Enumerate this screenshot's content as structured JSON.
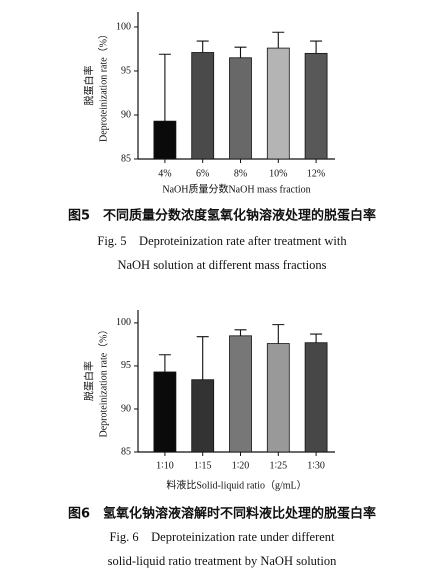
{
  "chart_data": [
    {
      "type": "bar",
      "ylabel": [
        "脱蛋白率",
        "Deproteinization rate（%）"
      ],
      "xlabel": "NaOH质量分数NaOH mass fraction",
      "categories": [
        "4%",
        "6%",
        "8%",
        "10%",
        "12%"
      ],
      "values": [
        89.3,
        97.1,
        96.5,
        97.6,
        97.0
      ],
      "errors": [
        7.6,
        1.3,
        1.2,
        1.8,
        1.4
      ],
      "colors": [
        "#0a0a0a",
        "#4a4a4a",
        "#686868",
        "#b4b4b4",
        "#585858"
      ],
      "ylim": [
        85,
        101.7
      ],
      "yticks": [
        85,
        90,
        95,
        100
      ],
      "caption": [
        "图5　不同质量分数浓度氢氧化钠溶液处理的脱蛋白率",
        "Fig. 5　Deproteinization rate after treatment with",
        "NaOH solution at different mass fractions"
      ]
    },
    {
      "type": "bar",
      "ylabel": [
        "脱蛋白率",
        "Deproteinization rate（%）"
      ],
      "xlabel": "料液比Solid-liquid ratio（g/mL）",
      "categories": [
        "1∶10",
        "1∶15",
        "1∶20",
        "1∶25",
        "1∶30"
      ],
      "values": [
        94.3,
        93.4,
        98.5,
        97.6,
        97.7
      ],
      "errors": [
        2.0,
        5.0,
        0.7,
        2.2,
        1.0
      ],
      "colors": [
        "#0a0a0a",
        "#333333",
        "#777777",
        "#999999",
        "#474747"
      ],
      "ylim": [
        85,
        101.5
      ],
      "yticks": [
        85,
        90,
        95,
        100
      ],
      "caption": [
        "图6　氢氧化钠溶液溶解时不同料液比处理的脱蛋白率",
        "Fig. 6　Deproteinization rate under different",
        "solid-liquid ratio treatment by NaOH solution"
      ]
    }
  ]
}
